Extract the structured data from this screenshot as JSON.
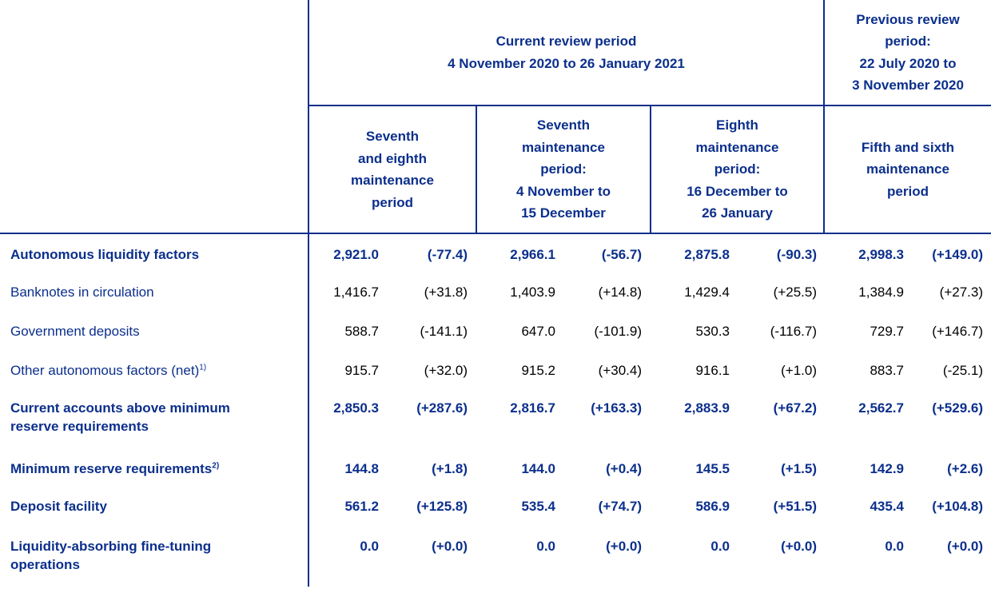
{
  "header": {
    "current_period": "Current review period\n4 November 2020 to 26 January 2021",
    "previous_period": "Previous review\nperiod:\n22 July 2020 to\n3 November 2020",
    "col1": "Seventh\nand eighth\nmaintenance\nperiod",
    "col2": "Seventh\nmaintenance\nperiod:\n4 November to\n15 December",
    "col3": "Eighth\nmaintenance\nperiod:\n16 December to\n26 January",
    "col4": "Fifth and sixth\nmaintenance\nperiod"
  },
  "rows": [
    {
      "label": "Autonomous liquidity factors",
      "sup": "",
      "values": [
        "2,921.0",
        "(-77.4)",
        "2,966.1",
        "(-56.7)",
        "2,875.8",
        "(-90.3)",
        "2,998.3",
        "(+149.0)"
      ]
    },
    {
      "label": "Banknotes in circulation",
      "sup": "",
      "values": [
        "1,416.7",
        "(+31.8)",
        "1,403.9",
        "(+14.8)",
        "1,429.4",
        "(+25.5)",
        "1,384.9",
        "(+27.3)"
      ]
    },
    {
      "label": "Government deposits",
      "sup": "",
      "values": [
        "588.7",
        "(-141.1)",
        "647.0",
        "(-101.9)",
        "530.3",
        "(-116.7)",
        "729.7",
        "(+146.7)"
      ]
    },
    {
      "label": "Other autonomous factors (net)",
      "sup": "1)",
      "values": [
        "915.7",
        "(+32.0)",
        "915.2",
        "(+30.4)",
        "916.1",
        "(+1.0)",
        "883.7",
        "(-25.1)"
      ]
    },
    {
      "label": "Current accounts above minimum\nreserve requirements",
      "sup": "",
      "values": [
        "2,850.3",
        "(+287.6)",
        "2,816.7",
        "(+163.3)",
        "2,883.9",
        "(+67.2)",
        "2,562.7",
        "(+529.6)"
      ]
    },
    {
      "label": "Minimum reserve requirements",
      "sup": "2)",
      "values": [
        "144.8",
        "(+1.8)",
        "144.0",
        "(+0.4)",
        "145.5",
        "(+1.5)",
        "142.9",
        "(+2.6)"
      ]
    },
    {
      "label": "Deposit facility",
      "sup": "",
      "values": [
        "561.2",
        "(+125.8)",
        "535.4",
        "(+74.7)",
        "586.9",
        "(+51.5)",
        "435.4",
        "(+104.8)"
      ]
    },
    {
      "label": "Liquidity-absorbing fine-tuning\noperations",
      "sup": "",
      "values": [
        "0.0",
        "(+0.0)",
        "0.0",
        "(+0.0)",
        "0.0",
        "(+0.0)",
        "0.0",
        "(+0.0)"
      ]
    }
  ]
}
